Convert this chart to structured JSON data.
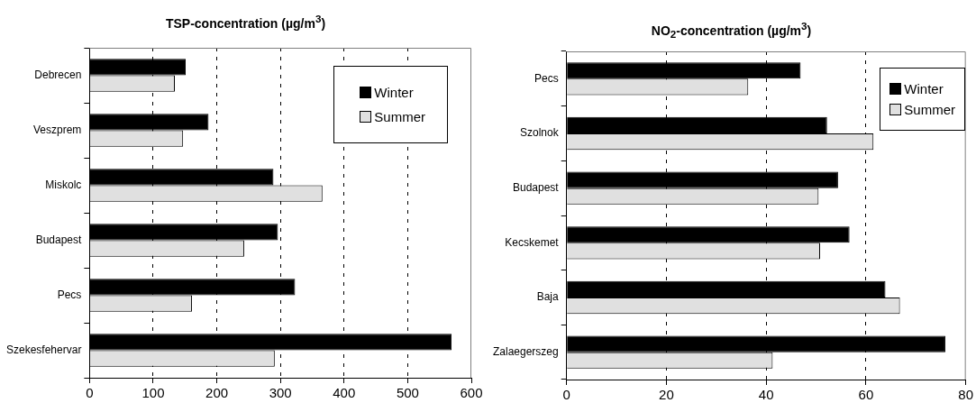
{
  "chart_data": [
    {
      "type": "bar",
      "orientation": "horizontal",
      "title": "TSP-concentration (µg/m$^{3}$)",
      "categories": [
        "Debrecen",
        "Veszprem",
        "Miskolc",
        "Budapest",
        "Pecs",
        "Szekesfehervar"
      ],
      "series": [
        {
          "name": "Winter",
          "color": "#000000",
          "values": [
            151,
            187,
            289,
            296,
            323,
            569
          ]
        },
        {
          "name": "Summer",
          "color": "#e0e0e0",
          "values": [
            134,
            147,
            366,
            243,
            161,
            291
          ]
        }
      ],
      "xlim": [
        0,
        600
      ],
      "xticks": [
        0,
        100,
        200,
        300,
        400,
        500,
        600
      ],
      "grid": "x",
      "legend": "top right"
    },
    {
      "type": "bar",
      "orientation": "horizontal",
      "title": "NO$_{2}$-concentration (µg/m$^{3}$)",
      "categories": [
        "Pecs",
        "Szolnok",
        "Budapest",
        "Kecskemet",
        "Baja",
        "Zalaegerszeg"
      ],
      "series": [
        {
          "name": "Winter",
          "color": "#000000",
          "values": [
            46.9,
            52.2,
            54.4,
            56.7,
            63.9,
            75.9
          ]
        },
        {
          "name": "Summer",
          "color": "#e0e0e0",
          "values": [
            36.4,
            61.5,
            50.5,
            50.8,
            66.8,
            41.3
          ]
        }
      ],
      "xlim": [
        0,
        80
      ],
      "xticks": [
        0,
        20,
        40,
        60,
        80
      ],
      "grid": "x",
      "legend": "top right"
    }
  ]
}
